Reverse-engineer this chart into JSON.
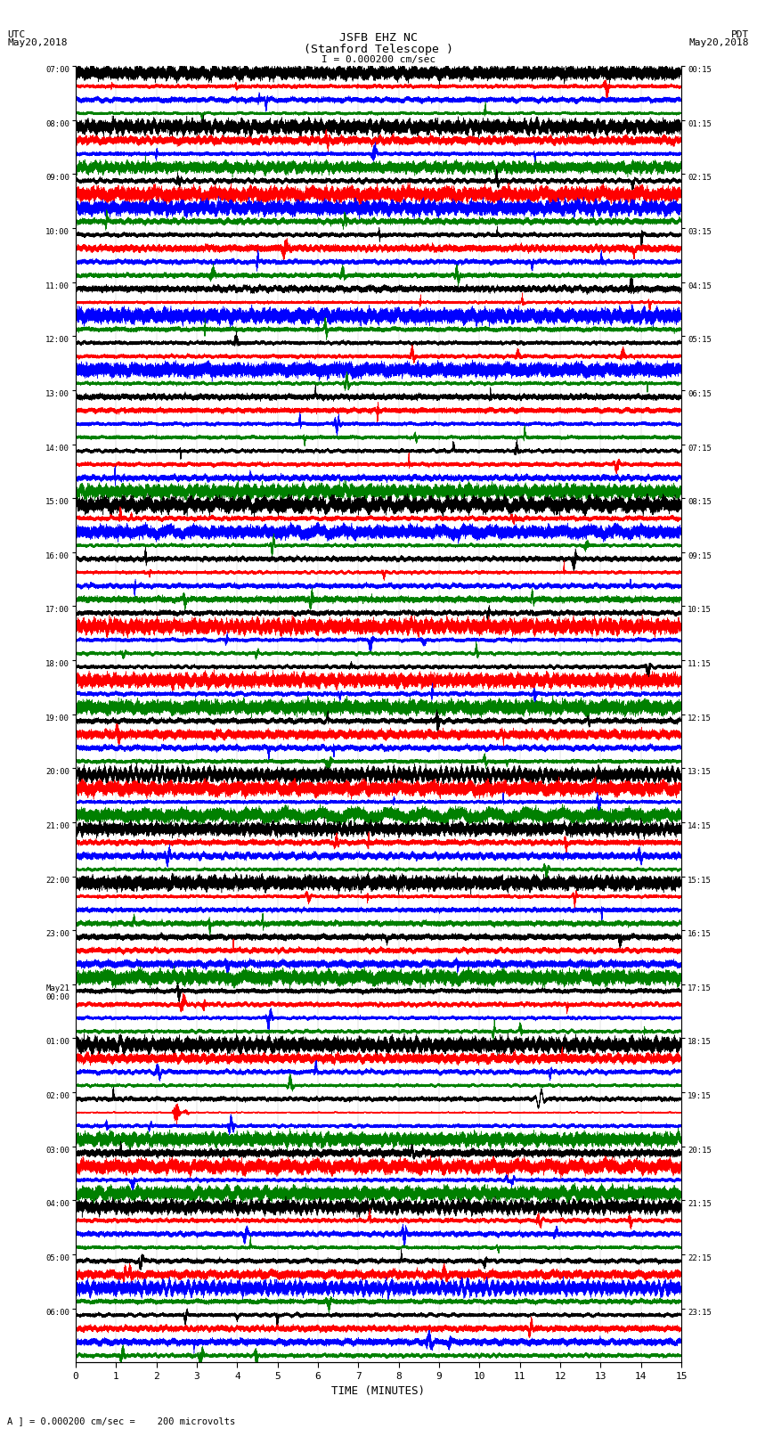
{
  "title_line1": "JSFB EHZ NC",
  "title_line2": "(Stanford Telescope )",
  "scale_label": "I = 0.000200 cm/sec",
  "utc_label": "UTC\nMay20,2018",
  "pdt_label": "PDT\nMay20,2018",
  "footer_label": "A ] = 0.000200 cm/sec =    200 microvolts",
  "xlabel": "TIME (MINUTES)",
  "left_times": [
    "07:00",
    "08:00",
    "09:00",
    "10:00",
    "11:00",
    "12:00",
    "13:00",
    "14:00",
    "15:00",
    "16:00",
    "17:00",
    "18:00",
    "19:00",
    "20:00",
    "21:00",
    "22:00",
    "23:00",
    "May21\n00:00",
    "01:00",
    "02:00",
    "03:00",
    "04:00",
    "05:00",
    "06:00"
  ],
  "right_times": [
    "00:15",
    "01:15",
    "02:15",
    "03:15",
    "04:15",
    "05:15",
    "06:15",
    "07:15",
    "08:15",
    "09:15",
    "10:15",
    "11:15",
    "12:15",
    "13:15",
    "14:15",
    "15:15",
    "16:15",
    "17:15",
    "18:15",
    "19:15",
    "20:15",
    "21:15",
    "22:15",
    "23:15"
  ],
  "colors": [
    "black",
    "red",
    "blue",
    "green"
  ],
  "num_rows": 24,
  "traces_per_row": 4,
  "minutes": 15,
  "sample_rate": 50,
  "background_color": "white",
  "fig_width": 8.5,
  "fig_height": 16.13
}
